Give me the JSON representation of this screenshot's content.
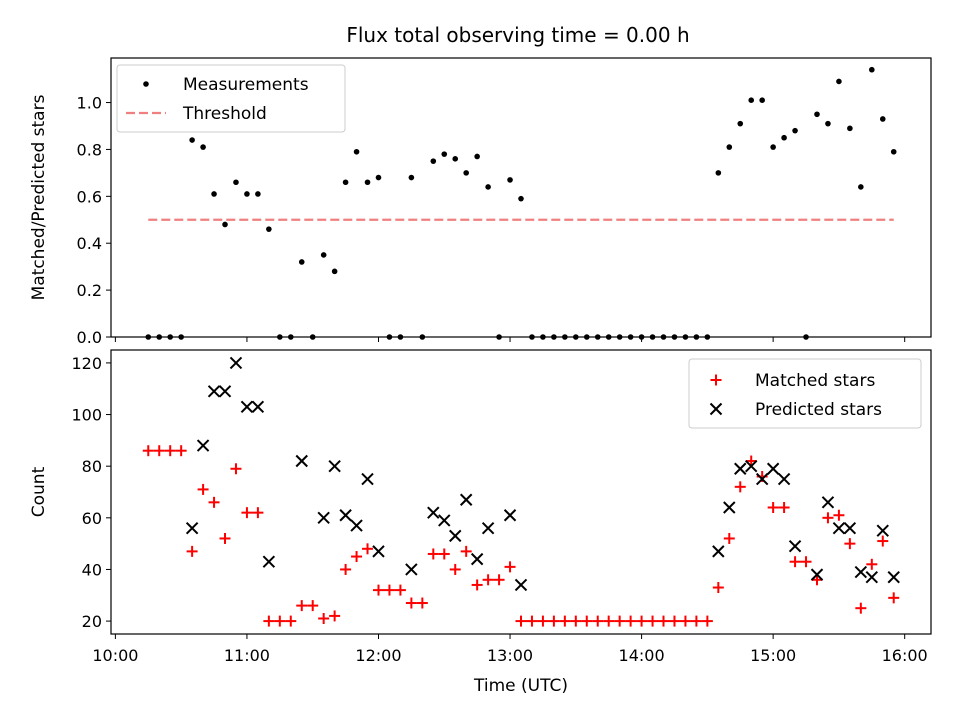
{
  "title": "Flux total observing time = 0.00 h",
  "colors": {
    "measurement": "#000000",
    "threshold": "#f08080",
    "matched": "#ff0000",
    "predicted": "#000000"
  },
  "chart_data": [
    {
      "type": "scatter",
      "title": "Flux total observing time = 0.00 h",
      "ylabel": "Matched/Predicted stars",
      "xlabel": "",
      "xlim": [
        "09:58",
        "16:12"
      ],
      "ylim": [
        0,
        1.19
      ],
      "yticks": [
        "0.0",
        "0.2",
        "0.4",
        "0.6",
        "0.8",
        "1.0"
      ],
      "legend": {
        "placement": "top-left",
        "entries": [
          "Measurements",
          "Threshold"
        ]
      },
      "series": [
        {
          "name": "Measurements",
          "marker": "dot",
          "points": [
            [
              "10:15",
              0
            ],
            [
              "10:20",
              0
            ],
            [
              "10:25",
              0
            ],
            [
              "10:30",
              0
            ],
            [
              "10:35",
              0.84
            ],
            [
              "10:40",
              0.81
            ],
            [
              "10:45",
              0.61
            ],
            [
              "10:50",
              0.48
            ],
            [
              "10:55",
              0.66
            ],
            [
              "11:00",
              0.61
            ],
            [
              "11:05",
              0.61
            ],
            [
              "11:10",
              0.46
            ],
            [
              "11:15",
              0
            ],
            [
              "11:20",
              0
            ],
            [
              "11:25",
              0.32
            ],
            [
              "11:30",
              0
            ],
            [
              "11:35",
              0.35
            ],
            [
              "11:40",
              0.28
            ],
            [
              "11:45",
              0.66
            ],
            [
              "11:50",
              0.79
            ],
            [
              "11:55",
              0.66
            ],
            [
              "12:00",
              0.68
            ],
            [
              "12:05",
              0
            ],
            [
              "12:10",
              0
            ],
            [
              "12:15",
              0.68
            ],
            [
              "12:20",
              0
            ],
            [
              "12:25",
              0.75
            ],
            [
              "12:30",
              0.78
            ],
            [
              "12:35",
              0.76
            ],
            [
              "12:40",
              0.7
            ],
            [
              "12:45",
              0.77
            ],
            [
              "12:50",
              0.64
            ],
            [
              "12:55",
              0
            ],
            [
              "13:00",
              0.67
            ],
            [
              "13:05",
              0.59
            ],
            [
              "13:10",
              0
            ],
            [
              "13:15",
              0
            ],
            [
              "13:20",
              0
            ],
            [
              "13:25",
              0
            ],
            [
              "13:30",
              0
            ],
            [
              "13:35",
              0
            ],
            [
              "13:40",
              0
            ],
            [
              "13:45",
              0
            ],
            [
              "13:50",
              0
            ],
            [
              "13:55",
              0
            ],
            [
              "14:00",
              0
            ],
            [
              "14:05",
              0
            ],
            [
              "14:10",
              0
            ],
            [
              "14:15",
              0
            ],
            [
              "14:20",
              0
            ],
            [
              "14:25",
              0
            ],
            [
              "14:30",
              0
            ],
            [
              "14:35",
              0.7
            ],
            [
              "14:40",
              0.81
            ],
            [
              "14:45",
              0.91
            ],
            [
              "14:50",
              1.01
            ],
            [
              "14:55",
              1.01
            ],
            [
              "15:00",
              0.81
            ],
            [
              "15:05",
              0.85
            ],
            [
              "15:10",
              0.88
            ],
            [
              "15:15",
              0
            ],
            [
              "15:20",
              0.95
            ],
            [
              "15:25",
              0.91
            ],
            [
              "15:30",
              1.09
            ],
            [
              "15:35",
              0.89
            ],
            [
              "15:40",
              0.64
            ],
            [
              "15:45",
              1.14
            ],
            [
              "15:50",
              0.93
            ],
            [
              "15:55",
              0.79
            ]
          ]
        },
        {
          "name": "Threshold",
          "style": "dashed",
          "points": [
            [
              "10:15",
              0.5
            ],
            [
              "15:55",
              0.5
            ]
          ]
        }
      ]
    },
    {
      "type": "scatter",
      "xlabel": "Time (UTC)",
      "ylabel": "Count",
      "xlim": [
        "09:58",
        "16:12"
      ],
      "ylim": [
        15,
        125
      ],
      "xticks": [
        "10:00",
        "11:00",
        "12:00",
        "13:00",
        "14:00",
        "15:00",
        "16:00"
      ],
      "yticks": [
        "20",
        "40",
        "60",
        "80",
        "100",
        "120"
      ],
      "legend": {
        "placement": "top-right",
        "entries": [
          "Matched stars",
          "Predicted stars"
        ]
      },
      "series": [
        {
          "name": "Matched stars",
          "marker": "plus",
          "points": [
            [
              "10:15",
              86
            ],
            [
              "10:20",
              86
            ],
            [
              "10:25",
              86
            ],
            [
              "10:30",
              86
            ],
            [
              "10:35",
              47
            ],
            [
              "10:40",
              71
            ],
            [
              "10:45",
              66
            ],
            [
              "10:50",
              52
            ],
            [
              "10:55",
              79
            ],
            [
              "11:00",
              62
            ],
            [
              "11:05",
              62
            ],
            [
              "11:10",
              20
            ],
            [
              "11:15",
              20
            ],
            [
              "11:20",
              20
            ],
            [
              "11:25",
              26
            ],
            [
              "11:30",
              26
            ],
            [
              "11:35",
              21
            ],
            [
              "11:40",
              22
            ],
            [
              "11:45",
              40
            ],
            [
              "11:50",
              45
            ],
            [
              "11:55",
              48
            ],
            [
              "12:00",
              32
            ],
            [
              "12:05",
              32
            ],
            [
              "12:10",
              32
            ],
            [
              "12:15",
              27
            ],
            [
              "12:20",
              27
            ],
            [
              "12:25",
              46
            ],
            [
              "12:30",
              46
            ],
            [
              "12:35",
              40
            ],
            [
              "12:40",
              47
            ],
            [
              "12:45",
              34
            ],
            [
              "12:50",
              36
            ],
            [
              "12:55",
              36
            ],
            [
              "13:00",
              41
            ],
            [
              "13:05",
              20
            ],
            [
              "13:10",
              20
            ],
            [
              "13:15",
              20
            ],
            [
              "13:20",
              20
            ],
            [
              "13:25",
              20
            ],
            [
              "13:30",
              20
            ],
            [
              "13:35",
              20
            ],
            [
              "13:40",
              20
            ],
            [
              "13:45",
              20
            ],
            [
              "13:50",
              20
            ],
            [
              "13:55",
              20
            ],
            [
              "14:00",
              20
            ],
            [
              "14:05",
              20
            ],
            [
              "14:10",
              20
            ],
            [
              "14:15",
              20
            ],
            [
              "14:20",
              20
            ],
            [
              "14:25",
              20
            ],
            [
              "14:30",
              20
            ],
            [
              "14:35",
              33
            ],
            [
              "14:40",
              52
            ],
            [
              "14:45",
              72
            ],
            [
              "14:50",
              82
            ],
            [
              "14:55",
              76
            ],
            [
              "15:00",
              64
            ],
            [
              "15:05",
              64
            ],
            [
              "15:10",
              43
            ],
            [
              "15:15",
              43
            ],
            [
              "15:20",
              36
            ],
            [
              "15:25",
              60
            ],
            [
              "15:30",
              61
            ],
            [
              "15:35",
              50
            ],
            [
              "15:40",
              25
            ],
            [
              "15:45",
              42
            ],
            [
              "15:50",
              51
            ],
            [
              "15:55",
              29
            ]
          ]
        },
        {
          "name": "Predicted stars",
          "marker": "x",
          "points": [
            [
              "10:35",
              56
            ],
            [
              "10:40",
              88
            ],
            [
              "10:45",
              109
            ],
            [
              "10:50",
              109
            ],
            [
              "10:55",
              120
            ],
            [
              "11:00",
              103
            ],
            [
              "11:05",
              103
            ],
            [
              "11:10",
              43
            ],
            [
              "11:25",
              82
            ],
            [
              "11:35",
              60
            ],
            [
              "11:40",
              80
            ],
            [
              "11:45",
              61
            ],
            [
              "11:50",
              57
            ],
            [
              "11:55",
              75
            ],
            [
              "12:00",
              47
            ],
            [
              "12:15",
              40
            ],
            [
              "12:25",
              62
            ],
            [
              "12:30",
              59
            ],
            [
              "12:35",
              53
            ],
            [
              "12:40",
              67
            ],
            [
              "12:45",
              44
            ],
            [
              "12:50",
              56
            ],
            [
              "13:00",
              61
            ],
            [
              "13:05",
              34
            ],
            [
              "14:35",
              47
            ],
            [
              "14:40",
              64
            ],
            [
              "14:45",
              79
            ],
            [
              "14:50",
              80
            ],
            [
              "14:55",
              75
            ],
            [
              "15:00",
              79
            ],
            [
              "15:05",
              75
            ],
            [
              "15:10",
              49
            ],
            [
              "15:20",
              38
            ],
            [
              "15:25",
              66
            ],
            [
              "15:30",
              56
            ],
            [
              "15:35",
              56
            ],
            [
              "15:40",
              39
            ],
            [
              "15:45",
              37
            ],
            [
              "15:50",
              55
            ],
            [
              "15:55",
              37
            ]
          ]
        }
      ]
    }
  ]
}
